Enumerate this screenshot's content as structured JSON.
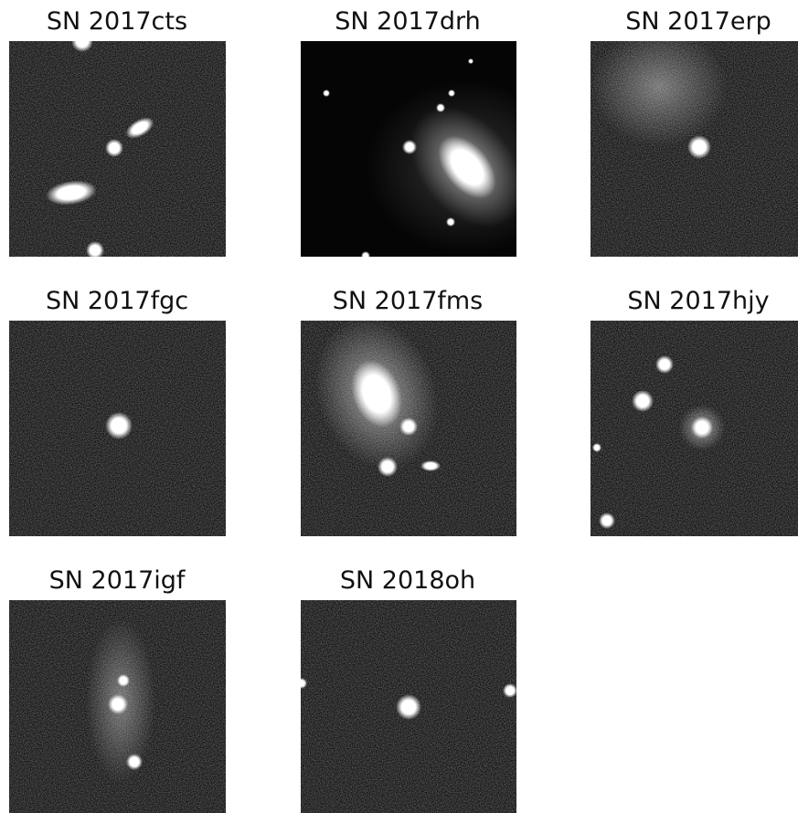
{
  "panels": [
    {
      "title": "SN 2017cts"
    },
    {
      "title": "SN 2017drh"
    },
    {
      "title": "SN 2017erp"
    },
    {
      "title": "SN 2017fgc"
    },
    {
      "title": "SN 2017fms"
    },
    {
      "title": "SN 2017hjy"
    },
    {
      "title": "SN 2017igf"
    },
    {
      "title": "SN 2018oh"
    }
  ]
}
